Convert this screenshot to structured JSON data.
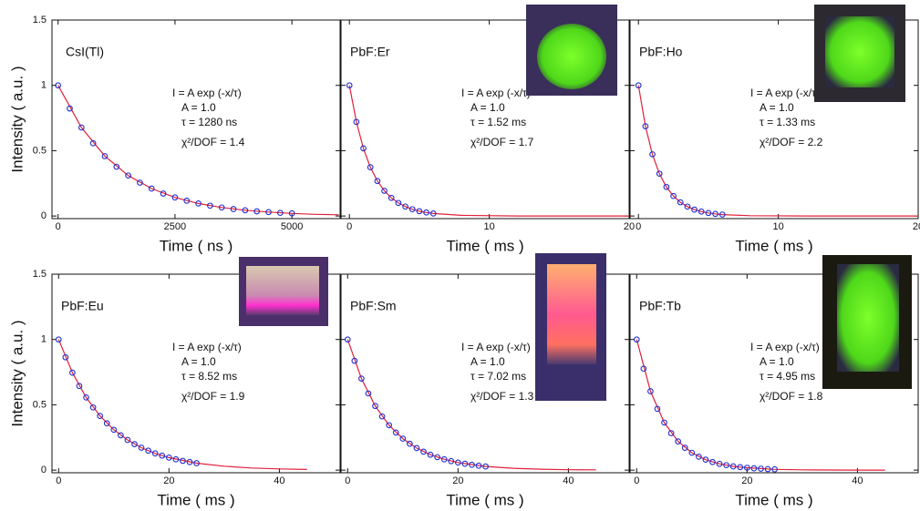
{
  "chart_data": [
    {
      "type": "scatter",
      "label": "CsI(Tl)",
      "xlabel": "Time ( ns )",
      "ylabel": "Intensity ( a.u. )",
      "annotations": [
        "I = A exp (-x/τ)",
        "A = 1.0",
        "τ = 1280 ns",
        "χ²/DOF = 1.4"
      ],
      "xlim": [
        -130,
        6030
      ],
      "xticks": [
        0,
        2500,
        5000
      ],
      "ylim": [
        -0.02,
        1.5
      ],
      "yticks": [
        0,
        0.5,
        1,
        1.5
      ],
      "series": [
        {
          "color": "#1f2fd0",
          "x": [
            0,
            250,
            500,
            750,
            1000,
            1250,
            1500,
            1750,
            2000,
            2250,
            2500,
            2750,
            3000,
            3250,
            3500,
            3750,
            4000,
            4250,
            4500,
            4750,
            5000
          ],
          "values": [
            1,
            0.823,
            0.677,
            0.557,
            0.458,
            0.377,
            0.31,
            0.255,
            0.21,
            0.172,
            0.142,
            0.117,
            0.096,
            0.079,
            0.065,
            0.053,
            0.044,
            0.036,
            0.03,
            0.024,
            0.02
          ]
        },
        {
          "color": "#e0203a",
          "x": [
            0,
            500,
            1000,
            1500,
            2000,
            2500,
            3000,
            3500,
            4000,
            4500,
            5000,
            5500,
            6000
          ],
          "values": [
            1,
            0.677,
            0.458,
            0.31,
            0.21,
            0.142,
            0.096,
            0.065,
            0.044,
            0.03,
            0.02,
            0.013,
            0.009
          ]
        }
      ]
    },
    {
      "type": "scatter",
      "label": "PbF:Er",
      "xlabel": "Time ( ms )",
      "annotations": [
        "I = A exp (-x/τ)",
        "A = 1.0",
        "τ = 1.52 ms",
        "χ²/DOF = 1.7"
      ],
      "xlim": [
        -0.6,
        20
      ],
      "xticks": [
        0,
        10,
        20
      ],
      "series": [
        {
          "color": "#1f2fd0",
          "x": [
            0,
            0.5,
            1,
            1.5,
            2,
            2.5,
            3,
            3.5,
            4,
            4.5,
            5,
            5.5,
            6
          ],
          "values": [
            1,
            0.72,
            0.518,
            0.373,
            0.268,
            0.193,
            0.139,
            0.1,
            0.072,
            0.052,
            0.037,
            0.027,
            0.019
          ]
        },
        {
          "color": "#e0203a",
          "x": [
            0,
            0.5,
            1,
            1.5,
            2,
            2.5,
            3,
            3.5,
            4,
            4.5,
            5,
            5.5,
            6,
            8,
            12,
            20
          ],
          "values": [
            1,
            0.72,
            0.518,
            0.373,
            0.268,
            0.193,
            0.139,
            0.1,
            0.072,
            0.052,
            0.037,
            0.027,
            0.019,
            0.005,
            0,
            0
          ]
        }
      ]
    },
    {
      "type": "scatter",
      "label": "PbF:Ho",
      "xlabel": "Time ( ms )",
      "annotations": [
        "I = A exp (-x/τ)",
        "A = 1.0",
        "τ = 1.33 ms",
        "χ²/DOF = 2.2"
      ],
      "xlim": [
        -0.6,
        20
      ],
      "xticks": [
        0,
        10,
        20
      ],
      "series": [
        {
          "color": "#1f2fd0",
          "x": [
            0,
            0.5,
            1,
            1.5,
            2,
            2.5,
            3,
            3.5,
            4,
            4.5,
            5,
            5.5,
            6
          ],
          "values": [
            1,
            0.687,
            0.472,
            0.324,
            0.222,
            0.153,
            0.105,
            0.072,
            0.049,
            0.034,
            0.023,
            0.016,
            0.011
          ]
        },
        {
          "color": "#e0203a",
          "x": [
            0,
            0.5,
            1,
            1.5,
            2,
            2.5,
            3,
            3.5,
            4,
            4.5,
            5,
            5.5,
            6,
            8,
            12,
            20
          ],
          "values": [
            1,
            0.687,
            0.472,
            0.324,
            0.222,
            0.153,
            0.105,
            0.072,
            0.049,
            0.034,
            0.023,
            0.016,
            0.011,
            0.002,
            0,
            0
          ]
        }
      ]
    },
    {
      "type": "scatter",
      "label": "PbF:Eu",
      "xlabel": "Time ( ms )",
      "ylabel": "Intensity ( a.u. )",
      "annotations": [
        "I = A exp (-x/τ)",
        "A = 1.0",
        "τ = 8.52 ms",
        "χ²/DOF = 1.9"
      ],
      "xlim": [
        -1.2,
        51
      ],
      "xticks": [
        0,
        20,
        40
      ],
      "ylim": [
        -0.02,
        1.5
      ],
      "yticks": [
        0,
        0.5,
        1,
        1.5
      ],
      "series": [
        {
          "color": "#1f2fd0",
          "x": [
            0,
            1.25,
            2.5,
            3.75,
            5,
            6.25,
            7.5,
            8.75,
            10,
            11.25,
            12.5,
            13.75,
            15,
            16.25,
            17.5,
            18.75,
            20,
            21.25,
            22.5,
            23.75,
            25
          ],
          "values": [
            1,
            0.864,
            0.746,
            0.644,
            0.556,
            0.48,
            0.415,
            0.358,
            0.309,
            0.267,
            0.231,
            0.199,
            0.172,
            0.149,
            0.128,
            0.111,
            0.096,
            0.083,
            0.071,
            0.062,
            0.053
          ]
        },
        {
          "color": "#e0203a",
          "x": [
            0,
            2.5,
            5,
            7.5,
            10,
            12.5,
            15,
            17.5,
            20,
            25,
            30,
            35,
            40,
            45
          ],
          "values": [
            1,
            0.746,
            0.556,
            0.415,
            0.309,
            0.231,
            0.172,
            0.128,
            0.096,
            0.053,
            0.03,
            0.016,
            0.009,
            0.005
          ]
        }
      ]
    },
    {
      "type": "scatter",
      "label": "PbF:Sm",
      "xlabel": "Time ( ms )",
      "annotations": [
        "I = A exp (-x/τ)",
        "A = 1.0",
        "τ = 7.02 ms",
        "χ²/DOF = 1.3"
      ],
      "xlim": [
        -1.2,
        51
      ],
      "xticks": [
        0,
        20,
        40
      ],
      "series": [
        {
          "color": "#1f2fd0",
          "x": [
            0,
            1.25,
            2.5,
            3.75,
            5,
            6.25,
            7.5,
            8.75,
            10,
            11.25,
            12.5,
            13.75,
            15,
            16.25,
            17.5,
            18.75,
            20,
            21.25,
            22.5,
            23.75,
            25
          ],
          "values": [
            1,
            0.837,
            0.701,
            0.587,
            0.491,
            0.411,
            0.344,
            0.288,
            0.241,
            0.202,
            0.169,
            0.141,
            0.118,
            0.099,
            0.083,
            0.069,
            0.058,
            0.049,
            0.041,
            0.034,
            0.028
          ]
        },
        {
          "color": "#e0203a",
          "x": [
            0,
            2.5,
            5,
            7.5,
            10,
            12.5,
            15,
            17.5,
            20,
            25,
            30,
            35,
            40,
            45
          ],
          "values": [
            1,
            0.701,
            0.491,
            0.344,
            0.241,
            0.169,
            0.118,
            0.083,
            0.058,
            0.028,
            0.014,
            0.007,
            0.003,
            0.002
          ]
        }
      ]
    },
    {
      "type": "scatter",
      "label": "PbF:Tb",
      "xlabel": "Time ( ms )",
      "annotations": [
        "I = A exp (-x/τ)",
        "A = 1.0",
        "τ = 4.95 ms",
        "χ²/DOF = 1.8"
      ],
      "xlim": [
        -1.2,
        51
      ],
      "xticks": [
        0,
        20,
        40
      ],
      "series": [
        {
          "color": "#1f2fd0",
          "x": [
            0,
            1.25,
            2.5,
            3.75,
            5,
            6.25,
            7.5,
            8.75,
            10,
            11.25,
            12.5,
            13.75,
            15,
            16.25,
            17.5,
            18.75,
            20,
            21.25,
            22.5,
            23.75,
            25
          ],
          "values": [
            1,
            0.777,
            0.604,
            0.469,
            0.364,
            0.283,
            0.22,
            0.171,
            0.133,
            0.103,
            0.08,
            0.062,
            0.048,
            0.038,
            0.029,
            0.023,
            0.018,
            0.014,
            0.011,
            0.008,
            0.006
          ]
        },
        {
          "color": "#e0203a",
          "x": [
            0,
            2.5,
            5,
            7.5,
            10,
            12.5,
            15,
            17.5,
            20,
            25,
            30,
            35,
            40,
            45
          ],
          "values": [
            1,
            0.604,
            0.364,
            0.22,
            0.133,
            0.08,
            0.048,
            0.029,
            0.018,
            0.006,
            0.002,
            0.001,
            0,
            0
          ]
        }
      ]
    }
  ]
}
